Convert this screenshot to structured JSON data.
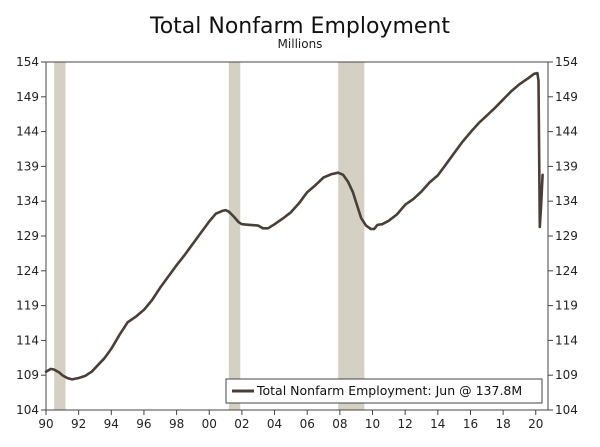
{
  "chart_data": {
    "type": "line",
    "title": "Total Nonfarm Employment",
    "subtitle": "Millions",
    "xlabel": "",
    "ylabel": "",
    "xlim": [
      1990.0,
      2020.75
    ],
    "ylim": [
      104,
      154
    ],
    "y_ticks": [
      104,
      109,
      114,
      119,
      124,
      129,
      134,
      139,
      144,
      149,
      154
    ],
    "x_ticks": [
      {
        "value": 1990,
        "label": "90"
      },
      {
        "value": 1992,
        "label": "92"
      },
      {
        "value": 1994,
        "label": "94"
      },
      {
        "value": 1996,
        "label": "96"
      },
      {
        "value": 1998,
        "label": "98"
      },
      {
        "value": 2000,
        "label": "00"
      },
      {
        "value": 2002,
        "label": "02"
      },
      {
        "value": 2004,
        "label": "04"
      },
      {
        "value": 2006,
        "label": "06"
      },
      {
        "value": 2008,
        "label": "08"
      },
      {
        "value": 2010,
        "label": "10"
      },
      {
        "value": 2012,
        "label": "12"
      },
      {
        "value": 2014,
        "label": "14"
      },
      {
        "value": 2016,
        "label": "16"
      },
      {
        "value": 2018,
        "label": "18"
      },
      {
        "value": 2020,
        "label": "20"
      }
    ],
    "recessions": [
      {
        "start": 1990.5,
        "end": 1991.2
      },
      {
        "start": 2001.2,
        "end": 2001.9
      },
      {
        "start": 2007.9,
        "end": 2009.5
      }
    ],
    "series": [
      {
        "name": "Total Nonfarm Employment: Jun @ 137.8M",
        "color": "#4a3f38",
        "x": [
          1990.0,
          1990.3,
          1990.5,
          1990.8,
          1991.0,
          1991.3,
          1991.6,
          1992.0,
          1992.4,
          1992.8,
          1993.2,
          1993.6,
          1994.0,
          1994.5,
          1995.0,
          1995.5,
          1996.0,
          1996.5,
          1997.0,
          1997.5,
          1998.0,
          1998.5,
          1999.0,
          1999.5,
          2000.0,
          2000.4,
          2000.8,
          2001.0,
          2001.2,
          2001.5,
          2001.8,
          2002.0,
          2002.5,
          2003.0,
          2003.3,
          2003.6,
          2004.0,
          2004.5,
          2005.0,
          2005.5,
          2006.0,
          2006.5,
          2007.0,
          2007.5,
          2007.9,
          2008.2,
          2008.5,
          2008.8,
          2009.0,
          2009.3,
          2009.6,
          2009.9,
          2010.1,
          2010.3,
          2010.6,
          2011.0,
          2011.5,
          2012.0,
          2012.5,
          2013.0,
          2013.5,
          2014.0,
          2014.5,
          2015.0,
          2015.5,
          2016.0,
          2016.5,
          2017.0,
          2017.5,
          2018.0,
          2018.5,
          2019.0,
          2019.5,
          2019.9,
          2020.1,
          2020.17,
          2020.25,
          2020.33,
          2020.42
        ],
        "values": [
          109.5,
          109.9,
          109.8,
          109.4,
          109.0,
          108.6,
          108.4,
          108.6,
          108.9,
          109.5,
          110.5,
          111.5,
          112.8,
          114.8,
          116.6,
          117.4,
          118.4,
          119.8,
          121.6,
          123.2,
          124.8,
          126.3,
          127.9,
          129.5,
          131.1,
          132.2,
          132.6,
          132.7,
          132.5,
          131.8,
          131.0,
          130.7,
          130.6,
          130.5,
          130.1,
          130.1,
          130.7,
          131.5,
          132.4,
          133.7,
          135.3,
          136.3,
          137.4,
          137.9,
          138.1,
          137.8,
          136.8,
          135.3,
          133.8,
          131.6,
          130.5,
          130.0,
          130.0,
          130.6,
          130.7,
          131.2,
          132.1,
          133.5,
          134.3,
          135.4,
          136.7,
          137.7,
          139.3,
          140.9,
          142.5,
          143.9,
          145.2,
          146.3,
          147.4,
          148.6,
          149.8,
          150.8,
          151.6,
          152.3,
          152.4,
          151.3,
          130.3,
          133.4,
          137.8
        ]
      }
    ],
    "legend": {
      "position": "bottom-right"
    },
    "grid": false
  }
}
